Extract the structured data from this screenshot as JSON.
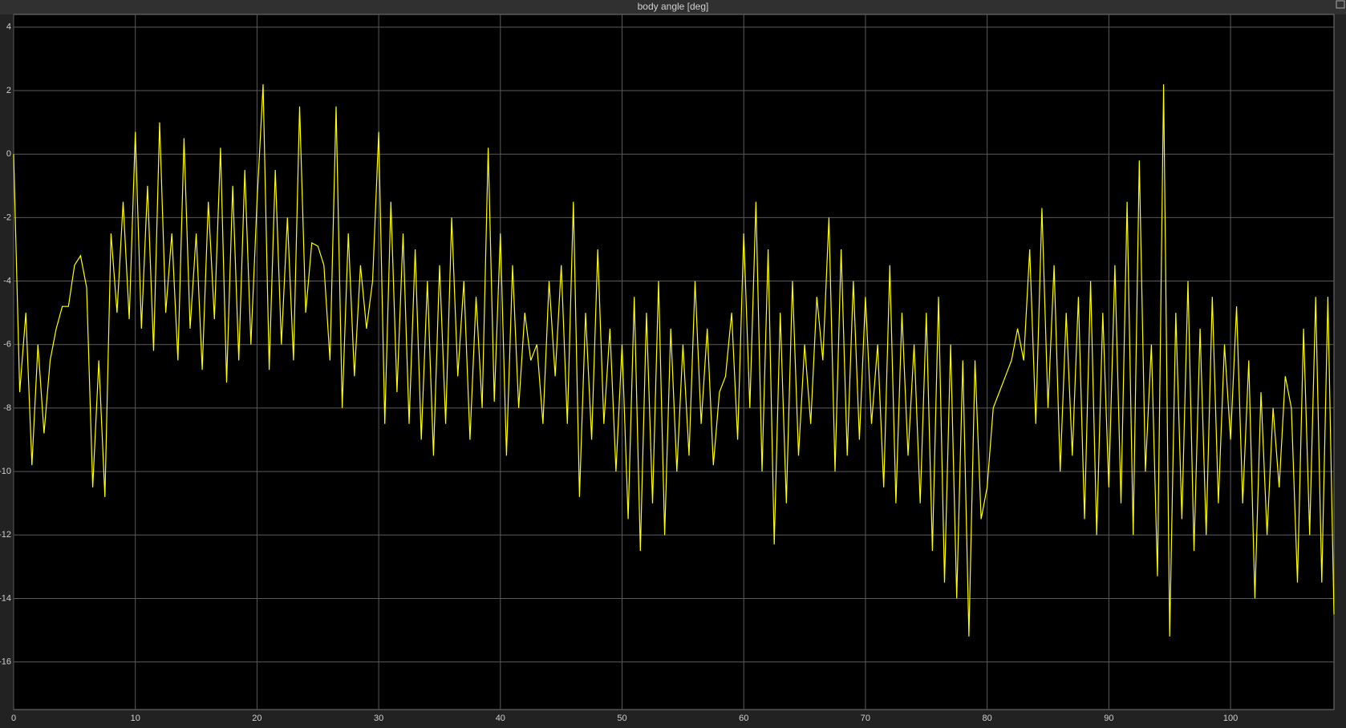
{
  "chart_data": {
    "type": "line",
    "title": "body angle [deg]",
    "x": [
      0,
      0.5,
      1,
      1.5,
      2,
      2.5,
      3,
      3.5,
      4,
      4.5,
      5,
      5.5,
      6,
      6.5,
      7,
      7.5,
      8,
      8.5,
      9,
      9.5,
      10,
      10.5,
      11,
      11.5,
      12,
      12.5,
      13,
      13.5,
      14,
      14.5,
      15,
      15.5,
      16,
      16.5,
      17,
      17.5,
      18,
      18.5,
      19,
      19.5,
      20,
      20.5,
      21,
      21.5,
      22,
      22.5,
      23,
      23.5,
      24,
      24.5,
      25,
      25.5,
      26,
      26.5,
      27,
      27.5,
      28,
      28.5,
      29,
      29.5,
      30,
      30.5,
      31,
      31.5,
      32,
      32.5,
      33,
      33.5,
      34,
      34.5,
      35,
      35.5,
      36,
      36.5,
      37,
      37.5,
      38,
      38.5,
      39,
      39.5,
      40,
      40.5,
      41,
      41.5,
      42,
      42.5,
      43,
      43.5,
      44,
      44.5,
      45,
      45.5,
      46,
      46.5,
      47,
      47.5,
      48,
      48.5,
      49,
      49.5,
      50,
      50.5,
      51,
      51.5,
      52,
      52.5,
      53,
      53.5,
      54,
      54.5,
      55,
      55.5,
      56,
      56.5,
      57,
      57.5,
      58,
      58.5,
      59,
      59.5,
      60,
      60.5,
      61,
      61.5,
      62,
      62.5,
      63,
      63.5,
      64,
      64.5,
      65,
      65.5,
      66,
      66.5,
      67,
      67.5,
      68,
      68.5,
      69,
      69.5,
      70,
      70.5,
      71,
      71.5,
      72,
      72.5,
      73,
      73.5,
      74,
      74.5,
      75,
      75.5,
      76,
      76.5,
      77,
      77.5,
      78,
      78.5,
      79,
      79.5,
      80,
      80.5,
      81,
      81.5,
      82,
      82.5,
      83,
      83.5,
      84,
      84.5,
      85,
      85.5,
      86,
      86.5,
      87,
      87.5,
      88,
      88.5,
      89,
      89.5,
      90,
      90.5,
      91,
      91.5,
      92,
      92.5,
      93,
      93.5,
      94,
      94.5,
      95,
      95.5,
      96,
      96.5,
      97,
      97.5,
      98,
      98.5,
      99,
      99.5,
      100,
      100.5,
      101,
      101.5,
      102,
      102.5,
      103,
      103.5,
      104,
      104.5,
      105,
      105.5,
      106,
      106.5,
      107,
      107.5,
      108,
      108.5
    ],
    "series": [
      {
        "color": "#ffff00",
        "values": [
          0,
          -7.5,
          -5,
          -9.8,
          -6,
          -8.8,
          -6.5,
          -5.5,
          -4.8,
          -4.8,
          -3.5,
          -3.2,
          -4.2,
          -10.5,
          -6.5,
          -10.8,
          -2.5,
          -5,
          -1.5,
          -5.2,
          0.7,
          -5.5,
          -1,
          -6.2,
          1,
          -5,
          -2.5,
          -6.5,
          0.5,
          -5.5,
          -2.5,
          -6.8,
          -1.5,
          -5.2,
          0.2,
          -7.2,
          -1,
          -6.5,
          -0.5,
          -6,
          -1.5,
          2.2,
          -6.8,
          -0.5,
          -6,
          -2,
          -6.5,
          1.5,
          -5,
          -2.8,
          -2.9,
          -3.5,
          -6.5,
          1.5,
          -8,
          -2.5,
          -7,
          -3.5,
          -5.5,
          -4,
          0.7,
          -8.5,
          -1.5,
          -7.5,
          -2.5,
          -8.5,
          -3,
          -9,
          -4,
          -9.5,
          -3.5,
          -8.5,
          -2,
          -7,
          -4,
          -9,
          -4.5,
          -8,
          0.2,
          -7.8,
          -2.5,
          -9.5,
          -3.5,
          -8,
          -5,
          -6.5,
          -6,
          -8.5,
          -4,
          -7,
          -3.5,
          -8.5,
          -1.5,
          -10.8,
          -5,
          -9,
          -3,
          -8.5,
          -5.5,
          -10,
          -6,
          -11.5,
          -4.5,
          -12.5,
          -5,
          -11,
          -4,
          -12,
          -5.5,
          -10,
          -6,
          -9.5,
          -4,
          -8.5,
          -5.5,
          -9.8,
          -7.5,
          -7,
          -5,
          -9,
          -2.5,
          -8,
          -1.5,
          -10,
          -3,
          -12.3,
          -5,
          -11,
          -4,
          -9.5,
          -6,
          -8.5,
          -4.5,
          -6.5,
          -2,
          -10,
          -3,
          -9.5,
          -4,
          -9,
          -4.5,
          -8.5,
          -6,
          -10.5,
          -3.5,
          -11,
          -5,
          -9.5,
          -6,
          -11,
          -5,
          -12.5,
          -4.5,
          -13.5,
          -6,
          -14,
          -6.5,
          -15.2,
          -6.5,
          -11.5,
          -10.5,
          -8,
          -7.5,
          -7,
          -6.5,
          -5.5,
          -6.5,
          -3,
          -8.5,
          -1.7,
          -8,
          -3.5,
          -10,
          -5,
          -9.5,
          -4.5,
          -11.5,
          -4,
          -12,
          -5,
          -10.5,
          -3.5,
          -11,
          -1.5,
          -12,
          -0.2,
          -10,
          -6,
          -13.3,
          2.2,
          -15.2,
          -5,
          -11.5,
          -4,
          -12.5,
          -5.5,
          -12,
          -4.5,
          -11,
          -6,
          -9,
          -4.8,
          -11,
          -6.5,
          -14,
          -7.5,
          -12,
          -8,
          -10.5,
          -7,
          -8,
          -13.5,
          -5.5,
          -12,
          -4.5,
          -13.5,
          -4.5,
          -14.5
        ]
      }
    ],
    "xlim": [
      0,
      108.5
    ],
    "xticks": [
      0,
      10,
      20,
      30,
      40,
      50,
      60,
      70,
      80,
      90,
      100
    ],
    "ylim": [
      -17.5,
      4.4
    ],
    "yticks": [
      -16,
      -14,
      -12,
      -10,
      -8,
      -6,
      -4,
      -2,
      0,
      2,
      4
    ],
    "grid": true
  }
}
